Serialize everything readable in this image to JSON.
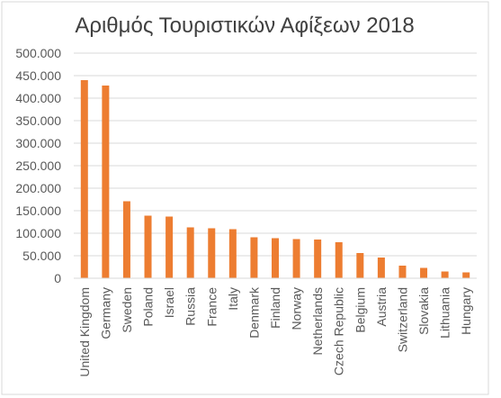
{
  "chart_data": {
    "type": "bar",
    "title": "Αριθμός Τουριστικών Αφίξεων 2018",
    "xlabel": "",
    "ylabel": "",
    "categories": [
      "United Kingdom",
      "Germany",
      "Sweden",
      "Poland",
      "Israel",
      "Russia",
      "France",
      "Italy",
      "Denmark",
      "Finland",
      "Norway",
      "Netherlands",
      "Czech Republic",
      "Belgium",
      "Austria",
      "Switzerland",
      "Slovakia",
      "Lithuania",
      "Hungary"
    ],
    "values": [
      440000,
      428000,
      171000,
      139000,
      137000,
      113000,
      111000,
      109000,
      91000,
      89000,
      87000,
      86000,
      80000,
      56000,
      46000,
      28000,
      23000,
      15000,
      13000
    ],
    "ylim": [
      0,
      500000
    ],
    "yticks": [
      0,
      50000,
      100000,
      150000,
      200000,
      250000,
      300000,
      350000,
      400000,
      450000,
      500000
    ],
    "ytick_labels": [
      "0",
      "50.000",
      "100.000",
      "150.000",
      "200.000",
      "250.000",
      "300.000",
      "350.000",
      "400.000",
      "450.000",
      "500.000"
    ],
    "grid": true,
    "legend": "none",
    "colors": {
      "bar": "#ED7D31",
      "grid": "#D9D9D9",
      "border": "#D9D9D9"
    }
  }
}
